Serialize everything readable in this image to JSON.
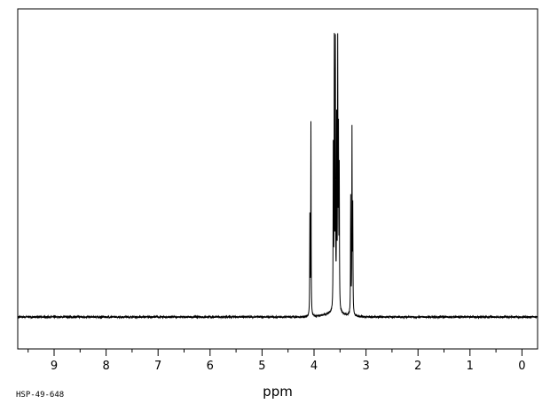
{
  "chart_data": {
    "type": "line",
    "xlabel": "ppm",
    "x_reversed": true,
    "xlim": [
      9.7,
      -0.3
    ],
    "ylim": [
      -0.08,
      1.0
    ],
    "ticks": [
      "9",
      "8",
      "7",
      "6",
      "5",
      "4",
      "3",
      "2",
      "1",
      "0"
    ],
    "tick_values": [
      9,
      8,
      7,
      6,
      5,
      4,
      3,
      2,
      1,
      0
    ],
    "grid": false,
    "legend": "none",
    "series": [
      {
        "peaks": [
          {
            "ppm": 4.06,
            "intensity": 0.68
          },
          {
            "ppm": 4.08,
            "intensity": 0.34
          },
          {
            "ppm": 3.63,
            "intensity": 0.56
          },
          {
            "ppm": 3.61,
            "intensity": 1.0
          },
          {
            "ppm": 3.59,
            "intensity": 0.92
          },
          {
            "ppm": 3.565,
            "intensity": 0.64
          },
          {
            "ppm": 3.545,
            "intensity": 0.95
          },
          {
            "ppm": 3.53,
            "intensity": 0.58
          },
          {
            "ppm": 3.515,
            "intensity": 0.48
          },
          {
            "ppm": 3.27,
            "intensity": 0.64
          },
          {
            "ppm": 3.295,
            "intensity": 0.41
          },
          {
            "ppm": 3.255,
            "intensity": 0.36
          }
        ]
      }
    ]
  },
  "footer": {
    "code": "HSP-49-648"
  },
  "colors": {
    "line": "#000000",
    "background": "#ffffff"
  }
}
